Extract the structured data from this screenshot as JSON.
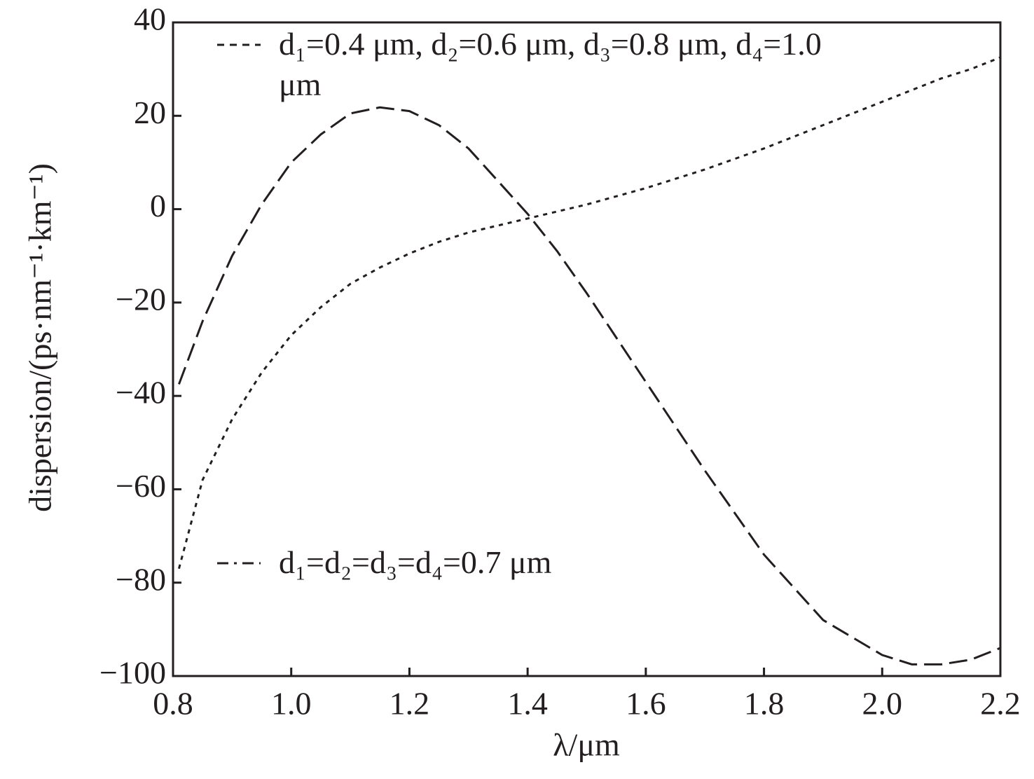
{
  "chart_data": {
    "type": "line",
    "x_label": "λ/μm",
    "y_label": "dispersion/(ps·nm⁻¹·km⁻¹)",
    "x": [
      0.81,
      0.85,
      0.9,
      0.95,
      1.0,
      1.05,
      1.1,
      1.15,
      1.2,
      1.25,
      1.3,
      1.35,
      1.4,
      1.45,
      1.5,
      1.6,
      1.7,
      1.8,
      1.9,
      2.0,
      2.05,
      2.1,
      2.15,
      2.2
    ],
    "series": [
      {
        "name": "d₁=0.4 μm, d₂=0.6 μm, d₃=0.8 μm, d₄=1.0 μm",
        "color": "#231f20",
        "dash": "dotted",
        "values": [
          -77,
          -58,
          -45,
          -35,
          -27,
          -21,
          -16,
          -12.5,
          -9.5,
          -7,
          -5,
          -3.5,
          -2,
          -0.5,
          1,
          4.5,
          8.5,
          13,
          18,
          23,
          25.5,
          28,
          30,
          32.5
        ]
      },
      {
        "name": "d₁=d₂=d₃=d₄=0.7 μm",
        "color": "#231f20",
        "dash": "dashed",
        "values": [
          -37.5,
          -24,
          -10,
          1,
          10,
          16,
          20.5,
          21.8,
          21,
          18,
          13,
          6,
          -1,
          -9,
          -18,
          -37,
          -56,
          -74,
          -88,
          -95.5,
          -97.5,
          -97.5,
          -96.5,
          -94
        ]
      }
    ],
    "xlim": [
      0.8,
      2.2
    ],
    "xticks": [
      0.8,
      {
        "value": 1,
        "label": "1.0"
      },
      1.2,
      1.4,
      1.6,
      1.8,
      {
        "value": 2,
        "label": "2.0"
      },
      2.2
    ],
    "ylim": [
      -100,
      40
    ],
    "yticks": [
      {
        "value": -100,
        "label": "−100"
      },
      {
        "value": -80,
        "label": "−80"
      },
      {
        "value": -60,
        "label": "−60"
      },
      {
        "value": -40,
        "label": "−40"
      },
      {
        "value": -20,
        "label": "−20"
      },
      0,
      20,
      40
    ],
    "grid": false
  }
}
